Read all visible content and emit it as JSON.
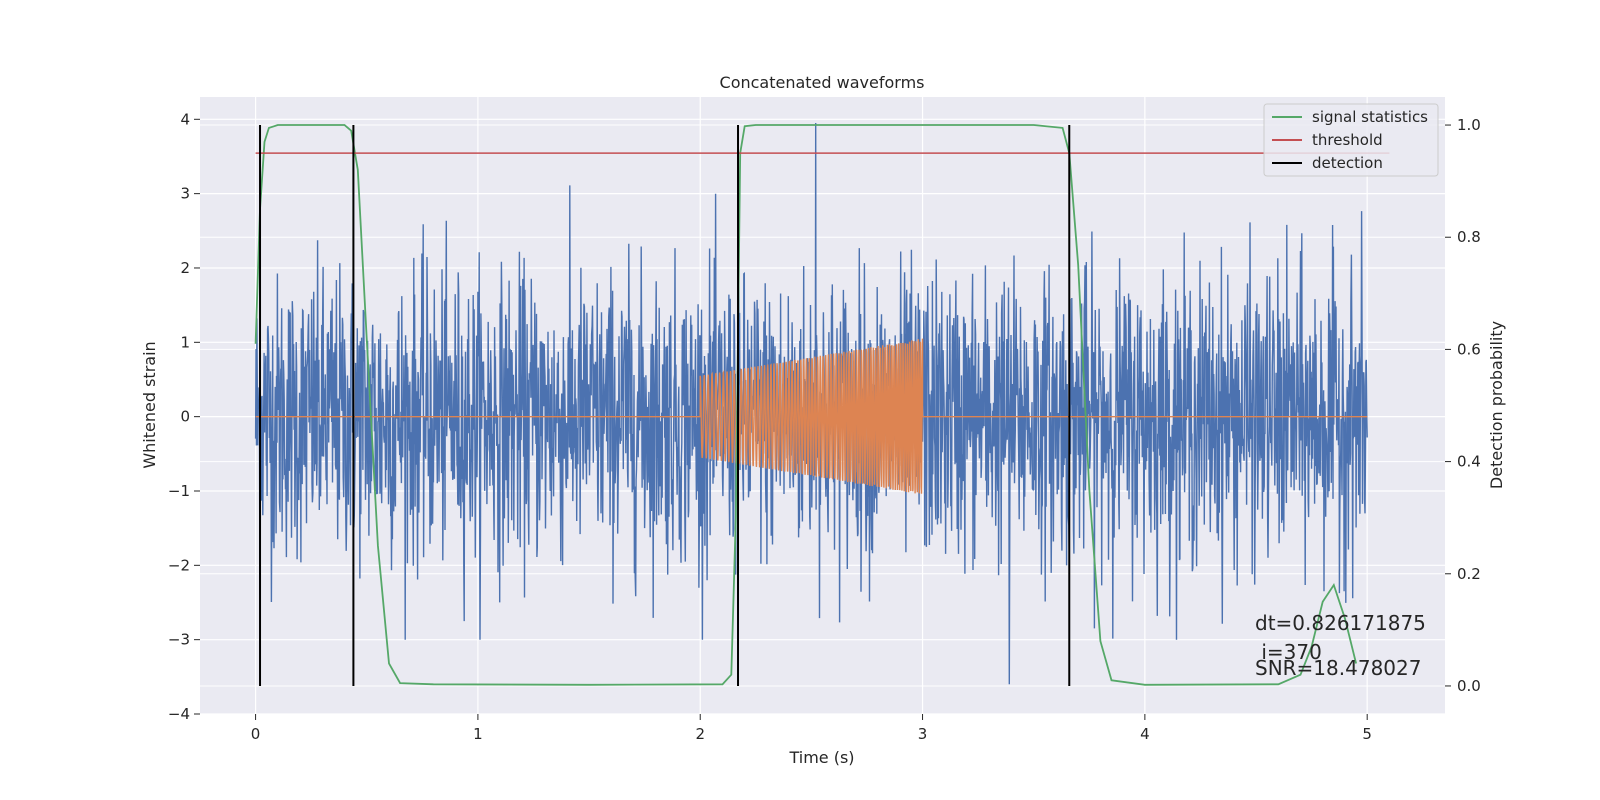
{
  "chart_data": {
    "type": "line",
    "title": "Concatenated waveforms",
    "xlabel": "Time (s)",
    "ylabel": "Whitened strain",
    "ylabel_right": "Detection probability",
    "xlim": [
      -0.25,
      5.35
    ],
    "ylim": [
      -4.0,
      4.3
    ],
    "ylim_right": [
      -0.05,
      1.05
    ],
    "x_ticks": [
      0,
      1,
      2,
      3,
      4,
      5
    ],
    "x_tick_labels": [
      "0",
      "1",
      "2",
      "3",
      "4",
      "5"
    ],
    "y_ticks": [
      -4,
      -3,
      -2,
      -1,
      0,
      1,
      2,
      3,
      4
    ],
    "y_tick_labels": [
      "−4",
      "−3",
      "−2",
      "−1",
      "0",
      "1",
      "2",
      "3",
      "4"
    ],
    "y_right_ticks": [
      0.0,
      0.2,
      0.4,
      0.6,
      0.8,
      1.0
    ],
    "y_right_tick_labels": [
      "0.0",
      "0.2",
      "0.4",
      "0.6",
      "0.8",
      "1.0"
    ],
    "grid": true,
    "legend_position": "top-right",
    "colors": {
      "strain": "#4c72b0",
      "injection": "#dd8452",
      "signal_statistics": "#55a868",
      "threshold": "#c44e52",
      "detection": "#000000",
      "plot_bg": "#eaeaf2",
      "grid": "#ffffff"
    },
    "series": [
      {
        "name": "signal statistics",
        "axis": "right",
        "x": [
          0.0,
          0.02,
          0.04,
          0.06,
          0.1,
          0.2,
          0.4,
          0.43,
          0.46,
          0.5,
          0.55,
          0.6,
          0.65,
          0.8,
          1.5,
          2.1,
          2.14,
          2.16,
          2.18,
          2.2,
          2.25,
          3.5,
          3.63,
          3.66,
          3.7,
          3.75,
          3.8,
          3.85,
          4.0,
          4.6,
          4.7,
          4.75,
          4.8,
          4.85,
          4.9,
          4.95
        ],
        "values": [
          0.61,
          0.85,
          0.97,
          0.995,
          1.0,
          1.0,
          1.0,
          0.99,
          0.92,
          0.62,
          0.25,
          0.04,
          0.005,
          0.003,
          0.002,
          0.003,
          0.02,
          0.3,
          0.95,
          0.998,
          1.0,
          1.0,
          0.995,
          0.95,
          0.75,
          0.35,
          0.08,
          0.01,
          0.002,
          0.003,
          0.02,
          0.07,
          0.15,
          0.18,
          0.12,
          0.04
        ]
      },
      {
        "name": "threshold",
        "axis": "right",
        "x": [
          0.0,
          5.1
        ],
        "values": [
          0.95,
          0.95
        ]
      },
      {
        "name": "detection",
        "axis": "right",
        "x": [
          0.02,
          0.44,
          2.17,
          3.66
        ],
        "values": [
          1.0,
          1.0,
          1.0,
          1.0
        ]
      }
    ],
    "strain_noise": {
      "x_range": [
        0.0,
        5.0
      ],
      "typical_range": [
        -2.0,
        2.5
      ],
      "extremes": [
        {
          "x": 2.52,
          "y": 3.95
        },
        {
          "x": 3.39,
          "y": -3.6
        },
        {
          "x": 0.02,
          "y": -2.4
        }
      ]
    },
    "injected_waveform": {
      "x_range": [
        2.0,
        3.0
      ],
      "amplitude_start": 0.55,
      "amplitude_end": 1.05,
      "baseline": 0
    },
    "annotations": [
      "dt=0.826171875",
      " i=370",
      "SNR=18.478027"
    ]
  }
}
